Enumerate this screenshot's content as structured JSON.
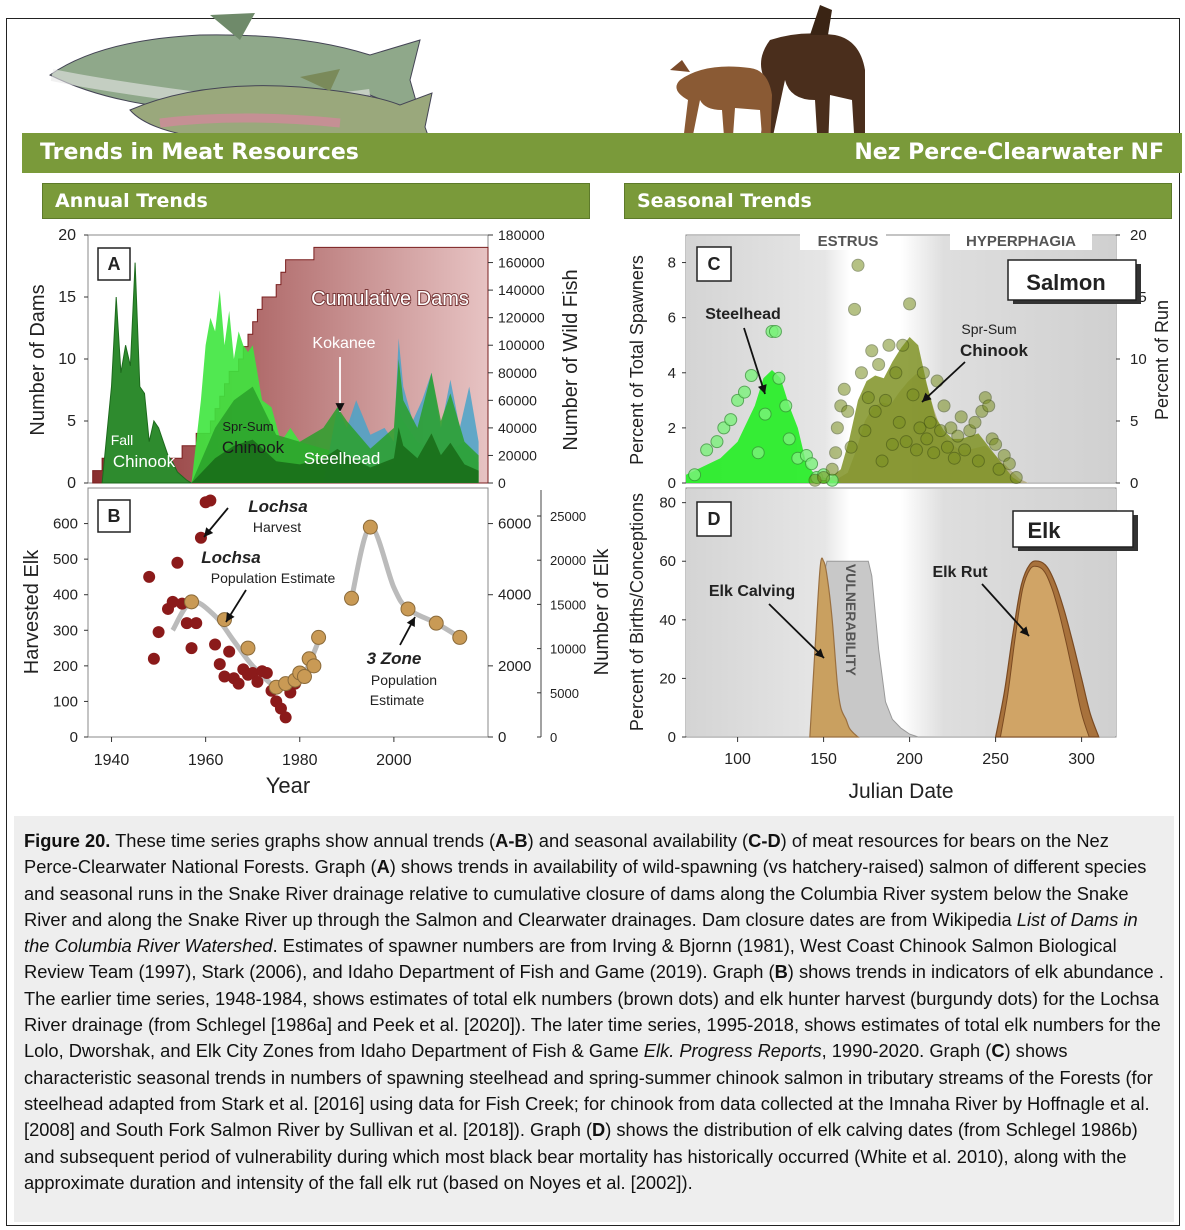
{
  "header": {
    "left_title": "Trends in Meat Resources",
    "right_title": "Nez Perce-Clearwater NF",
    "annual_label": "Annual Trends",
    "seasonal_label": "Seasonal Trends"
  },
  "colors": {
    "band_green": "#7a9a3a",
    "dam_fill": "#b06a6a",
    "dark_green": "#1e7a1e",
    "bright_green": "#3ee63e",
    "kokanee_blue": "#4aa3c9",
    "burgundy": "#8b1a1a",
    "elk_tan": "#c99a55",
    "olive": "#7a8f20"
  },
  "caption": {
    "lead": "Figure 20.",
    "t1": " These time series graphs show annual trends (",
    "b1": "A-B",
    "t2": ") and seasonal availability (",
    "b2": "C-D",
    "t3": ") of meat resources for bears on the Nez Perce-Clearwater National Forests. Graph (",
    "b3": "A",
    "t4": ") shows trends in availability of wild-spawning (vs hatchery-raised) salmon of different species and seasonal runs in the Snake River drainage relative to cumulative closure of dams along the Columbia River system below the Snake River and along the Snake River up through the Salmon and Clearwater drainages. Dam closure dates are from Wikipedia ",
    "i1": "List of Dams in the Columbia River Watershed",
    "t5": ". Estimates of spawner numbers are from Irving & Bjornn (1981), West Coast Chinook Salmon Biological Review Team (1997), Stark (2006), and Idaho Department of Fish and Game (2019). Graph (",
    "b4": "B",
    "t6": ") shows trends in indicators of elk abundance . The earlier time series, 1948-1984, shows estimates of total elk numbers (brown dots) and elk hunter harvest (burgundy dots) for the Lochsa River drainage (from Schlegel [1986a] and Peek et al. [2020]). The later time series, 1995-2018, shows estimates of total elk numbers for the Lolo, Dworshak, and Elk City Zones from Idaho Department of Fish & Game ",
    "i2": "Elk. Progress Reports",
    "t7": ", 1990-2020. Graph (",
    "b5": "C",
    "t8": ") shows characteristic seasonal trends in numbers of spawning steelhead and spring-summer chinook salmon in tributary streams of the Forests (for steelhead adapted from Stark et al. [2016] using data for Fish Creek; for chinook from data collected at the Imnaha River by Hoffnagle et al. [2008] and South Fork Salmon River by Sullivan et al. [2018]). Graph (",
    "b6": "D",
    "t9": ") shows the distribution of elk calving dates (from Schlegel 1986b) and subsequent period of vulnerability during which most black bear mortality has historically occurred (White et al. 2010), along with the approximate duration and intensity of the fall elk rut (based on Noyes et al. [2002])."
  },
  "chart_data": [
    {
      "panel": "A",
      "type": "area",
      "ylabel": "Number of Dams",
      "ylabel_right": "Number of Wild Fish",
      "ylim": [
        0,
        20
      ],
      "yticks": [
        "0",
        "5",
        "10",
        "15",
        "20"
      ],
      "ylim_right": [
        0,
        180000
      ],
      "yticks_right": [
        "0",
        "20000",
        "40000",
        "60000",
        "80000",
        "100000",
        "120000",
        "140000",
        "160000",
        "180000"
      ],
      "series": [
        {
          "name": "Cumulative Dams",
          "x": [
            1936,
            1938,
            1953,
            1955,
            1958,
            1961,
            1962,
            1963,
            1964,
            1965,
            1967,
            1968,
            1969,
            1970,
            1971,
            1972,
            1975,
            1976,
            1977,
            1979,
            1980,
            1981,
            1982,
            1983,
            2020
          ],
          "y": [
            1,
            2,
            2,
            3,
            4,
            5,
            6,
            7,
            8,
            9,
            10,
            11,
            12,
            13,
            14,
            15,
            16,
            17,
            18,
            18,
            18,
            18,
            18,
            19,
            19
          ]
        },
        {
          "name": "Fall Chinook",
          "x": [
            1938,
            1940,
            1941,
            1942,
            1943,
            1944,
            1945,
            1946,
            1947,
            1948,
            1949,
            1950,
            1951,
            1952,
            1953,
            1954,
            1955,
            1956,
            1957
          ],
          "y": [
            0,
            70000,
            135000,
            80000,
            100000,
            85000,
            160000,
            70000,
            65000,
            30000,
            45000,
            40000,
            30000,
            20000,
            15000,
            8000,
            5000,
            2000,
            0
          ]
        },
        {
          "name": "Spr-Sum Chinook",
          "x": [
            1957,
            1959,
            1960,
            1961,
            1962,
            1963,
            1964,
            1965,
            1966,
            1967,
            1968,
            1969,
            1970,
            1972,
            1974,
            1976,
            1978,
            1980,
            1985,
            1990,
            1995,
            2000,
            2001,
            2002,
            2005,
            2010,
            2015,
            2018
          ],
          "y": [
            0,
            60000,
            100000,
            120000,
            110000,
            140000,
            100000,
            125000,
            90000,
            110000,
            100000,
            95000,
            100000,
            60000,
            55000,
            30000,
            40000,
            30000,
            25000,
            20000,
            10000,
            15000,
            55000,
            45000,
            30000,
            20000,
            30000,
            15000
          ]
        },
        {
          "name": "Steelhead",
          "x": [
            1957,
            1962,
            1966,
            1970,
            1975,
            1980,
            1985,
            1988,
            1990,
            1995,
            2000,
            2001,
            2002,
            2005,
            2008,
            2010,
            2012,
            2015,
            2018
          ],
          "y": [
            0,
            40000,
            60000,
            70000,
            35000,
            30000,
            40000,
            55000,
            45000,
            25000,
            40000,
            90000,
            60000,
            40000,
            80000,
            45000,
            65000,
            30000,
            20000
          ]
        },
        {
          "name": "Kokanee",
          "x": [
            1985,
            1988,
            1990,
            1992,
            1995,
            1998,
            2000,
            2001,
            2002,
            2004,
            2006,
            2008,
            2010,
            2012,
            2014,
            2016,
            2018
          ],
          "y": [
            0,
            55000,
            40000,
            60000,
            35000,
            40000,
            30000,
            105000,
            70000,
            45000,
            60000,
            80000,
            40000,
            75000,
            40000,
            70000,
            30000
          ]
        }
      ],
      "labels": [
        "Cumulative Dams",
        "Kokanee",
        "Fall",
        "Chinook",
        "Spr-Sum",
        "Chinook",
        "Steelhead"
      ]
    },
    {
      "panel": "B",
      "type": "scatter",
      "xlabel": "Year",
      "ylabel": "Harvested Elk",
      "ylabel_right": "Number of Elk",
      "xlim": [
        1935,
        2020
      ],
      "xticks": [
        "1940",
        "1960",
        "1980",
        "2000"
      ],
      "ylim": [
        0,
        700
      ],
      "yticks": [
        "0",
        "100",
        "200",
        "300",
        "400",
        "500",
        "600"
      ],
      "ylim_right": [
        0,
        7000
      ],
      "yticks_right": [
        "0",
        "2000",
        "4000",
        "6000"
      ],
      "yticks_right2": [
        "0",
        "5000",
        "10000",
        "15000",
        "20000",
        "25000"
      ],
      "harvest": {
        "name": "Lochsa Harvest",
        "x": [
          1948,
          1949,
          1950,
          1952,
          1953,
          1954,
          1955,
          1956,
          1957,
          1958,
          1959,
          1960,
          1961,
          1962,
          1963,
          1964,
          1965,
          1966,
          1967,
          1968,
          1969,
          1970,
          1971,
          1972,
          1973,
          1974,
          1975,
          1976,
          1977,
          1978,
          1979
        ],
        "y": [
          450,
          220,
          295,
          360,
          380,
          490,
          375,
          320,
          250,
          320,
          560,
          660,
          665,
          260,
          205,
          170,
          240,
          165,
          150,
          190,
          175,
          180,
          155,
          185,
          180,
          130,
          100,
          80,
          55,
          125,
          150
        ]
      },
      "population": {
        "name": "Lochsa Population Estimate",
        "x": [
          1957,
          1964,
          1969,
          1975,
          1977,
          1979,
          1980,
          1981,
          1982,
          1983,
          1984,
          1991,
          1995,
          2003,
          2009,
          2014
        ],
        "y": [
          3800,
          3300,
          2500,
          1400,
          1500,
          1600,
          1800,
          1700,
          2200,
          2000,
          2800,
          3900,
          5900,
          3600,
          3200,
          2800
        ]
      },
      "labels": [
        "Lochsa",
        "Harvest",
        "Lochsa",
        "Population Estimate",
        "3 Zone",
        "Population",
        "Estimate"
      ]
    },
    {
      "panel": "C",
      "type": "area",
      "ylabel": "Percent of Total Spawners",
      "ylabel_right": "Percent of Run",
      "ylim": [
        0,
        9
      ],
      "yticks": [
        "0",
        "2",
        "4",
        "6",
        "8"
      ],
      "ylim_right": [
        0,
        20
      ],
      "yticks_right": [
        "0",
        "5",
        "10",
        "15",
        "20"
      ],
      "periods": [
        "ESTRUS",
        "HYPERPHAGIA"
      ],
      "inset_label": "Salmon",
      "series": [
        {
          "name": "Steelhead",
          "x": [
            70,
            80,
            90,
            100,
            110,
            115,
            120,
            125,
            130,
            135,
            140,
            145,
            150,
            160
          ],
          "y": [
            0.3,
            0.6,
            0.9,
            1.5,
            2.8,
            3.8,
            4.1,
            3.8,
            2.8,
            2.0,
            0.7,
            0.3,
            0.2,
            0
          ]
        },
        {
          "name": "Spr-Sum Chinook",
          "x": [
            150,
            160,
            165,
            170,
            175,
            180,
            185,
            190,
            195,
            200,
            205,
            210,
            215,
            220,
            225,
            230,
            240,
            250,
            255,
            260,
            265
          ],
          "y": [
            0,
            0.5,
            1.6,
            3.0,
            3.7,
            3.9,
            3.8,
            4.4,
            4.9,
            5.3,
            5.0,
            3.6,
            2.4,
            1.9,
            1.6,
            1.6,
            1.8,
            1.0,
            0.6,
            0.2,
            0
          ]
        }
      ],
      "labels": [
        "Steelhead",
        "Spr-Sum",
        "Chinook"
      ]
    },
    {
      "panel": "D",
      "type": "area",
      "xlabel": "Julian Date",
      "ylabel": "Percent of Births/Conceptions",
      "xlim": [
        70,
        320
      ],
      "xticks": [
        "100",
        "150",
        "200",
        "250",
        "300"
      ],
      "ylim": [
        0,
        85
      ],
      "yticks": [
        "0",
        "20",
        "40",
        "60",
        "80"
      ],
      "inset_label": "Elk",
      "vulnerability_label": "VULNERABILITY",
      "series": [
        {
          "name": "Elk Calving",
          "x": [
            142,
            145,
            148,
            150,
            152,
            155,
            158,
            160,
            163,
            165,
            168,
            170
          ],
          "y": [
            0,
            30,
            58,
            60,
            55,
            40,
            18,
            10,
            6,
            3,
            1,
            0
          ]
        },
        {
          "name": "Elk Rut",
          "x": [
            250,
            255,
            260,
            265,
            270,
            275,
            280,
            285,
            290,
            295,
            300,
            305,
            310
          ],
          "y": [
            0,
            15,
            35,
            52,
            59,
            60,
            58,
            52,
            43,
            32,
            20,
            8,
            0
          ]
        }
      ],
      "labels": [
        "Elk Calving",
        "Elk Rut"
      ]
    }
  ]
}
